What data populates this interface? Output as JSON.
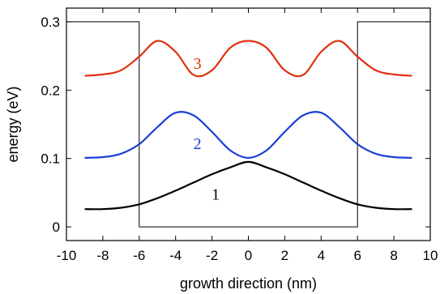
{
  "chart_data": {
    "type": "line",
    "title": "",
    "xlabel": "growth direction (nm)",
    "ylabel": "energy (eV)",
    "xlim": [
      -10,
      10
    ],
    "ylim": [
      -0.02,
      0.32
    ],
    "x_ticks": [
      -10,
      -8,
      -6,
      -4,
      -2,
      0,
      2,
      4,
      6,
      8,
      10
    ],
    "y_ticks": [
      0,
      0.1,
      0.2,
      0.3
    ],
    "x_tick_labels": [
      "-10",
      "-8",
      "-6",
      "-4",
      "-2",
      "0",
      "2",
      "4",
      "6",
      "8",
      "10"
    ],
    "y_tick_labels": [
      "0",
      "0.1",
      "0.2",
      "0.3"
    ],
    "grid": false,
    "potential_well": {
      "x": [
        -10,
        -6,
        -6,
        6,
        6,
        10
      ],
      "y": [
        0.3,
        0.3,
        0.0,
        0.0,
        0.3,
        0.3
      ],
      "color": "#000000"
    },
    "series": [
      {
        "label": "1",
        "color": "#000000",
        "x": [
          -9,
          -8,
          -7,
          -6,
          -5,
          -4,
          -3,
          -2,
          -1,
          0,
          1,
          2,
          3,
          4,
          5,
          6,
          7,
          8,
          9
        ],
        "y": [
          0.026,
          0.026,
          0.028,
          0.033,
          0.042,
          0.053,
          0.065,
          0.077,
          0.087,
          0.095,
          0.087,
          0.077,
          0.065,
          0.053,
          0.042,
          0.033,
          0.028,
          0.026,
          0.026
        ]
      },
      {
        "label": "2",
        "color": "#1a3fd6",
        "x": [
          -9,
          -8,
          -7,
          -6,
          -5,
          -4,
          -3,
          -2,
          -1,
          0,
          1,
          2,
          3,
          4,
          5,
          6,
          7,
          8,
          9
        ],
        "y": [
          0.101,
          0.102,
          0.107,
          0.121,
          0.146,
          0.167,
          0.163,
          0.139,
          0.112,
          0.101,
          0.112,
          0.139,
          0.163,
          0.167,
          0.146,
          0.121,
          0.107,
          0.102,
          0.101
        ]
      },
      {
        "label": "3",
        "color": "#e03010",
        "x": [
          -9,
          -8,
          -7,
          -6,
          -5,
          -4,
          -3,
          -2,
          -1,
          0,
          1,
          2,
          3,
          4,
          5,
          6,
          7,
          8,
          9
        ],
        "y": [
          0.221,
          0.223,
          0.229,
          0.249,
          0.272,
          0.256,
          0.222,
          0.229,
          0.262,
          0.272,
          0.262,
          0.229,
          0.222,
          0.256,
          0.272,
          0.249,
          0.229,
          0.223,
          0.221
        ]
      }
    ],
    "annotations": [
      {
        "text": "1",
        "x": -1.8,
        "y": 0.04,
        "color": "#000000"
      },
      {
        "text": "2",
        "x": -2.8,
        "y": 0.114,
        "color": "#1a3fd6"
      },
      {
        "text": "3",
        "x": -2.8,
        "y": 0.231,
        "color": "#e03010"
      }
    ]
  }
}
